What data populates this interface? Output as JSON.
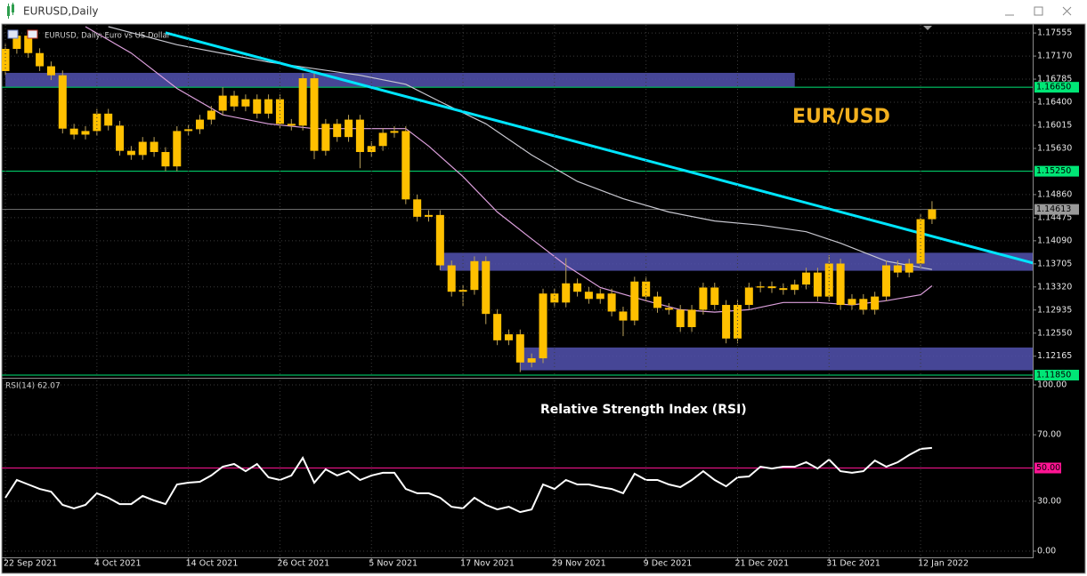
{
  "window": {
    "title": "EURUSD,Daily"
  },
  "chart_data": [
    {
      "type": "candlestick",
      "title": "EURUSD, Daily:  Euro vs US Dollar",
      "annotation": "EUR/USD",
      "color": "#ffc000",
      "open": [
        1.1692,
        1.1729,
        1.1751,
        1.1722,
        1.17,
        1.1685,
        1.1596,
        1.1586,
        1.1592,
        1.1621,
        1.1601,
        1.1559,
        1.1552,
        1.1574,
        1.1557,
        1.1533,
        1.1592,
        1.1595,
        1.1611,
        1.1626,
        1.1651,
        1.1633,
        1.1645,
        1.1621,
        1.1645,
        1.1604,
        1.1601,
        1.168,
        1.1559,
        1.1604,
        1.1582,
        1.1611,
        1.1557,
        1.1567,
        1.1589,
        1.1592,
        1.1478,
        1.1449,
        1.1452,
        1.1368,
        1.1324,
        1.1327,
        1.1375,
        1.1287,
        1.1243,
        1.1253,
        1.1206,
        1.1213,
        1.1321,
        1.1306,
        1.1338,
        1.1324,
        1.1312,
        1.1321,
        1.1291,
        1.1276,
        1.1341,
        1.1316,
        1.1297,
        1.1294,
        1.1265,
        1.1294,
        1.1331,
        1.1302,
        1.1246,
        1.1302,
        1.1331,
        1.1333,
        1.133,
        1.1327,
        1.1336,
        1.1356,
        1.1316,
        1.1371,
        1.1302,
        1.1312,
        1.1294,
        1.1316,
        1.1368,
        1.1356,
        1.1371,
        1.1445
      ],
      "high": [
        1.1737,
        1.1759,
        1.1759,
        1.173,
        1.1708,
        1.1693,
        1.1604,
        1.16,
        1.1629,
        1.1629,
        1.1609,
        1.1567,
        1.1582,
        1.1582,
        1.1565,
        1.16,
        1.1603,
        1.1619,
        1.1634,
        1.1665,
        1.1659,
        1.1653,
        1.1653,
        1.1653,
        1.1653,
        1.1612,
        1.1688,
        1.1688,
        1.1612,
        1.1612,
        1.1619,
        1.1619,
        1.1575,
        1.1597,
        1.16,
        1.16,
        1.1486,
        1.146,
        1.146,
        1.1376,
        1.1335,
        1.1383,
        1.1383,
        1.1295,
        1.1261,
        1.1261,
        1.1221,
        1.1329,
        1.1329,
        1.138,
        1.1346,
        1.1332,
        1.1329,
        1.1329,
        1.1299,
        1.1349,
        1.1349,
        1.1324,
        1.1305,
        1.1302,
        1.1302,
        1.1339,
        1.1339,
        1.131,
        1.131,
        1.1339,
        1.1341,
        1.1341,
        1.1338,
        1.1344,
        1.1364,
        1.1364,
        1.1385,
        1.1379,
        1.132,
        1.132,
        1.1324,
        1.1376,
        1.1376,
        1.1379,
        1.1453,
        1.1475
      ],
      "low": [
        1.1684,
        1.1721,
        1.1714,
        1.1692,
        1.1677,
        1.1588,
        1.1578,
        1.1578,
        1.1584,
        1.1593,
        1.1551,
        1.1544,
        1.1544,
        1.1549,
        1.1525,
        1.1525,
        1.1584,
        1.1587,
        1.1603,
        1.1618,
        1.1625,
        1.1625,
        1.1613,
        1.1613,
        1.1596,
        1.1593,
        1.1593,
        1.1545,
        1.1551,
        1.1574,
        1.1574,
        1.153,
        1.1549,
        1.1559,
        1.1581,
        1.147,
        1.1441,
        1.1441,
        1.136,
        1.1316,
        1.13,
        1.1319,
        1.127,
        1.1235,
        1.1235,
        1.119,
        1.1198,
        1.1205,
        1.1298,
        1.1298,
        1.1316,
        1.1304,
        1.1304,
        1.1283,
        1.125,
        1.1268,
        1.1308,
        1.1289,
        1.1286,
        1.1257,
        1.1257,
        1.1286,
        1.1294,
        1.1238,
        1.1238,
        1.1294,
        1.1323,
        1.1322,
        1.1319,
        1.1319,
        1.1328,
        1.1308,
        1.1308,
        1.1294,
        1.1294,
        1.1286,
        1.1286,
        1.1308,
        1.1348,
        1.1348,
        1.1363,
        1.1437
      ],
      "close": [
        1.1729,
        1.1751,
        1.1722,
        1.17,
        1.1685,
        1.1596,
        1.1586,
        1.1592,
        1.1621,
        1.1601,
        1.1559,
        1.1552,
        1.1574,
        1.1557,
        1.1533,
        1.1592,
        1.1595,
        1.1611,
        1.1626,
        1.1651,
        1.1633,
        1.1645,
        1.1621,
        1.1645,
        1.1604,
        1.1601,
        1.168,
        1.1559,
        1.1604,
        1.1582,
        1.1611,
        1.1557,
        1.1567,
        1.1589,
        1.1592,
        1.1478,
        1.1449,
        1.1452,
        1.1368,
        1.1324,
        1.1327,
        1.1375,
        1.1287,
        1.1243,
        1.1253,
        1.1206,
        1.1213,
        1.1321,
        1.1306,
        1.1338,
        1.1324,
        1.1312,
        1.1321,
        1.1291,
        1.1276,
        1.1341,
        1.1316,
        1.1297,
        1.1294,
        1.1265,
        1.1294,
        1.1331,
        1.1302,
        1.1246,
        1.1302,
        1.1331,
        1.1333,
        1.133,
        1.1327,
        1.1336,
        1.1356,
        1.1316,
        1.1371,
        1.1302,
        1.1312,
        1.1294,
        1.1316,
        1.1368,
        1.1356,
        1.1371,
        1.1445,
        1.14613
      ],
      "lines": [
        {
          "color": "#dda0dd",
          "x": [
            7,
            11,
            15,
            19,
            23,
            27,
            31,
            35,
            37,
            40,
            43,
            46,
            49,
            52,
            56,
            59,
            62,
            65,
            68,
            71,
            74,
            77,
            80,
            81
          ],
          "values": [
            1.1766,
            1.1722,
            1.1663,
            1.1619,
            1.1604,
            1.1596,
            1.1596,
            1.1596,
            1.1567,
            1.1516,
            1.1457,
            1.1412,
            1.1368,
            1.1331,
            1.1309,
            1.1294,
            1.129,
            1.1294,
            1.1306,
            1.1306,
            1.1302,
            1.1309,
            1.1319,
            1.1334
          ]
        },
        {
          "color": "#c8c8d0",
          "x": [
            9,
            15,
            23,
            31,
            35,
            38,
            42,
            46,
            50,
            54,
            58,
            62,
            66,
            70,
            73,
            77,
            81
          ],
          "values": [
            1.1766,
            1.1736,
            1.1707,
            1.1685,
            1.167,
            1.1641,
            1.1604,
            1.1552,
            1.1508,
            1.1479,
            1.1457,
            1.1442,
            1.1435,
            1.1424,
            1.1405,
            1.1375,
            1.1361
          ]
        },
        {
          "color": "#00e5ff",
          "x": [
            14,
            90
          ],
          "values": [
            1.1756,
            1.1371
          ]
        }
      ],
      "zones": [
        {
          "x": [
            0,
            69
          ],
          "y": [
            1.1689,
            1.1666
          ]
        },
        {
          "x": [
            38,
            90
          ],
          "y": [
            1.1389,
            1.1359
          ]
        },
        {
          "x": [
            45,
            90
          ],
          "y": [
            1.1231,
            1.1193
          ]
        }
      ],
      "zone_color": "#5252b0",
      "levels": [
        {
          "value": 1.1665,
          "label": "1.16650"
        },
        {
          "value": 1.1525,
          "label": "1.15250"
        },
        {
          "value": 1.1185,
          "label": "1.11850"
        }
      ],
      "level_color": "#00e676",
      "xlim": [
        -0.47,
        89.8
      ],
      "ylim": [
        1.1182,
        1.1769
      ],
      "yticks": [
        1.17555,
        {
          "value": 1.1717,
          "label": "1.17170"
        },
        1.16785,
        {
          "value": 1.164,
          "label": "1.16400"
        },
        1.16015,
        {
          "value": 1.1563,
          "label": "1.15630"
        },
        {
          "value": 1.1486,
          "label": "1.14860"
        },
        1.14475,
        {
          "value": 1.1409,
          "label": "1.14090"
        },
        1.13705,
        {
          "value": 1.1332,
          "label": "1.13320"
        },
        1.12935,
        {
          "value": 1.1255,
          "label": "1.12550"
        },
        1.12165
      ],
      "grid": true
    },
    {
      "type": "line",
      "title": "RSI(14) 62.07",
      "annotation": "Relative Strength Index (RSI)",
      "color": "#ffffff",
      "categories": [
        "22 Sep 2021",
        null,
        null,
        null,
        null,
        null,
        null,
        null,
        "4 Oct 2021",
        null,
        null,
        null,
        null,
        null,
        null,
        null,
        "14 Oct 2021",
        null,
        null,
        null,
        null,
        null,
        null,
        null,
        "26 Oct 2021",
        null,
        null,
        null,
        null,
        null,
        null,
        null,
        "5 Nov 2021",
        null,
        null,
        null,
        null,
        null,
        null,
        null,
        "17 Nov 2021",
        null,
        null,
        null,
        null,
        null,
        null,
        null,
        "29 Nov 2021",
        null,
        null,
        null,
        null,
        null,
        null,
        null,
        "9 Dec 2021",
        null,
        null,
        null,
        null,
        null,
        null,
        null,
        "21 Dec 2021",
        null,
        null,
        null,
        null,
        null,
        null,
        null,
        "31 Dec 2021",
        null,
        null,
        null,
        null,
        null,
        null,
        null,
        "12 Jan 2022",
        null
      ],
      "values": [
        32.1,
        42.8,
        40.1,
        37.4,
        35.8,
        27.8,
        25.7,
        27.8,
        34.8,
        32.1,
        28.3,
        28.3,
        33.2,
        30.5,
        28.3,
        40.1,
        41.2,
        41.7,
        45.5,
        50.8,
        52.4,
        48.1,
        52.4,
        44.4,
        42.8,
        45.5,
        56.1,
        41.2,
        49.2,
        45.5,
        48.1,
        42.8,
        45.5,
        47.1,
        47.1,
        37.4,
        34.8,
        34.8,
        32.1,
        26.7,
        25.7,
        32.1,
        27.8,
        25.1,
        26.7,
        23.5,
        25.1,
        40.1,
        37.4,
        42.8,
        40.1,
        40.1,
        38.5,
        37.4,
        34.8,
        46.5,
        42.8,
        42.8,
        40.1,
        38.5,
        42.8,
        48.1,
        42.8,
        39.0,
        44.4,
        44.9,
        50.8,
        49.7,
        50.8,
        50.8,
        53.5,
        49.7,
        55.1,
        48.1,
        47.1,
        48.1,
        54.5,
        50.8,
        53.5,
        57.8,
        61.5,
        62.07
      ],
      "level": {
        "value": 50,
        "label": "50.00"
      },
      "level_color": "#ff1493",
      "xlim": [
        -0.47,
        89.8
      ],
      "ylim": [
        0,
        100
      ],
      "yticks": [
        {
          "value": 100,
          "label": "100.00"
        },
        {
          "value": 70,
          "label": "70.00"
        },
        {
          "value": 30,
          "label": "30.00"
        },
        {
          "value": 0,
          "label": "0.00"
        }
      ],
      "grid": true
    }
  ]
}
